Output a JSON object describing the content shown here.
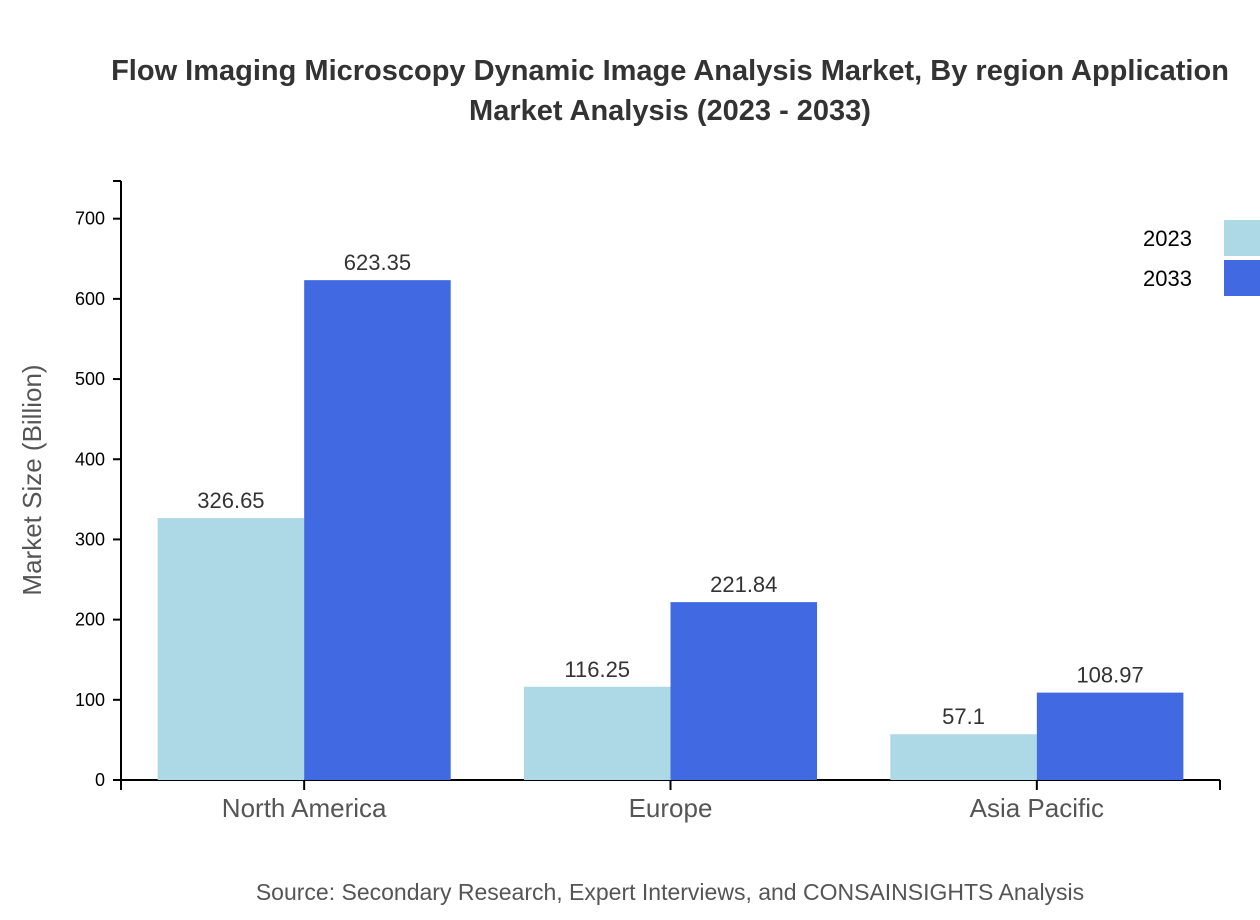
{
  "chart_data": {
    "type": "bar",
    "title_lines": [
      "Flow Imaging Microscopy Dynamic Image Analysis Market, By region Application",
      "Market Analysis (2023 - 2033)"
    ],
    "xlabel": "",
    "ylabel": "Market Size (Billion)",
    "categories": [
      "North America",
      "Europe",
      "Asia Pacific"
    ],
    "series": [
      {
        "name": "2023",
        "color": "#add8e6",
        "values": [
          326.65,
          116.25,
          57.1
        ],
        "labels": [
          "326.65",
          "116.25",
          "57.1"
        ]
      },
      {
        "name": "2033",
        "color": "#4169e1",
        "values": [
          623.35,
          221.84,
          108.97
        ],
        "labels": [
          "623.35",
          "221.84",
          "108.97"
        ]
      }
    ],
    "ylim": [
      0,
      747
    ],
    "yticks": [
      0,
      100,
      200,
      300,
      400,
      500,
      600,
      700
    ],
    "grid": false,
    "legend_position": "top-right",
    "source": "Source: Secondary Research, Expert Interviews, and CONSAINSIGHTS Analysis"
  }
}
